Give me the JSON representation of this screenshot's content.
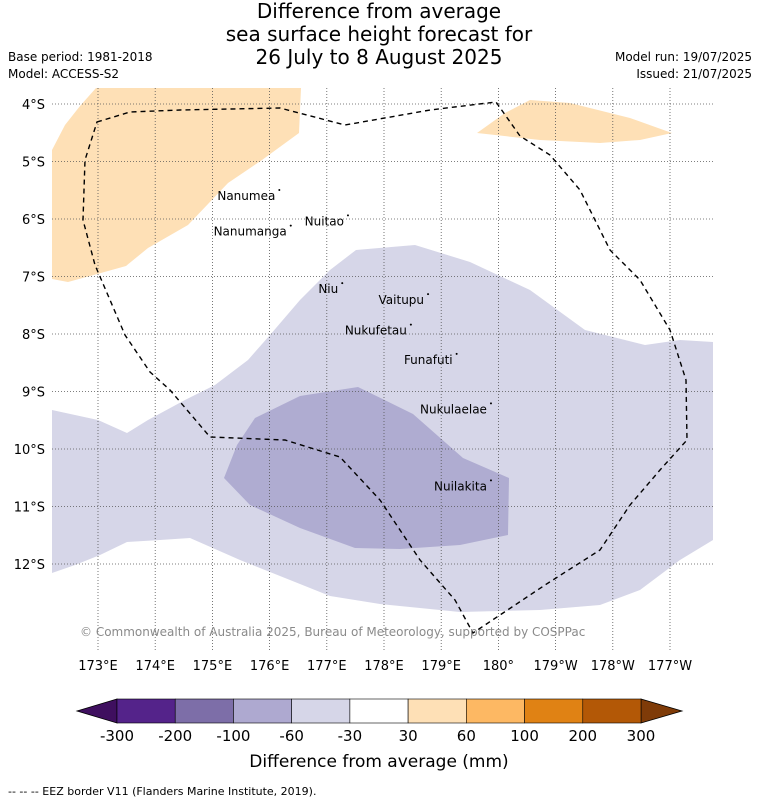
{
  "title": {
    "line1": "Difference from average",
    "line2": "sea surface height forecast for",
    "line3": "26 July to 8 August 2025"
  },
  "meta": {
    "base_period": "Base period: 1981-2018",
    "model": "Model: ACCESS-S2",
    "model_run": "Model run: 19/07/2025",
    "issued": "Issued: 21/07/2025"
  },
  "map": {
    "lat_labels": [
      "4°S",
      "5°S",
      "6°S",
      "7°S",
      "8°S",
      "9°S",
      "10°S",
      "11°S",
      "12°S"
    ],
    "lon_labels": [
      "173°E",
      "174°E",
      "175°E",
      "176°E",
      "177°E",
      "178°E",
      "179°E",
      "180°",
      "179°W",
      "178°W",
      "177°W"
    ],
    "places": [
      {
        "name": "Nanumea",
        "lon": 176.1,
        "lat": -5.67
      },
      {
        "name": "Nuitao",
        "lon": 177.3,
        "lat": -6.11
      },
      {
        "name": "Nanumanga",
        "lon": 176.3,
        "lat": -6.29
      },
      {
        "name": "Niu",
        "lon": 177.2,
        "lat": -7.29
      },
      {
        "name": "Vaitupu",
        "lon": 178.7,
        "lat": -7.48
      },
      {
        "name": "Nukufetau",
        "lon": 178.4,
        "lat": -8.01
      },
      {
        "name": "Funafuti",
        "lon": 179.2,
        "lat": -8.52
      },
      {
        "name": "Nukulaelae",
        "lon": 179.8,
        "lat": -9.38
      },
      {
        "name": "Nuilakita",
        "lon": 179.8,
        "lat": -10.72
      }
    ],
    "copyright": "© Commonwealth of Australia 2025, Bureau of Meteorology, supported by COSPPac"
  },
  "colorbar": {
    "ticks": [
      "-300",
      "-200",
      "-100",
      "-60",
      "-30",
      "30",
      "60",
      "100",
      "200",
      "300"
    ],
    "colors": [
      "#3f0f5f",
      "#54238a",
      "#7d6ea8",
      "#aea9d0",
      "#d6d6e8",
      "#ffffff",
      "#fee0b6",
      "#fdb863",
      "#e08214",
      "#b35806",
      "#7f3b08"
    ],
    "label": "Difference from average (mm)"
  },
  "footer": "--  --  -- EEZ border V11 (Flanders Marine Institute, 2019)."
}
